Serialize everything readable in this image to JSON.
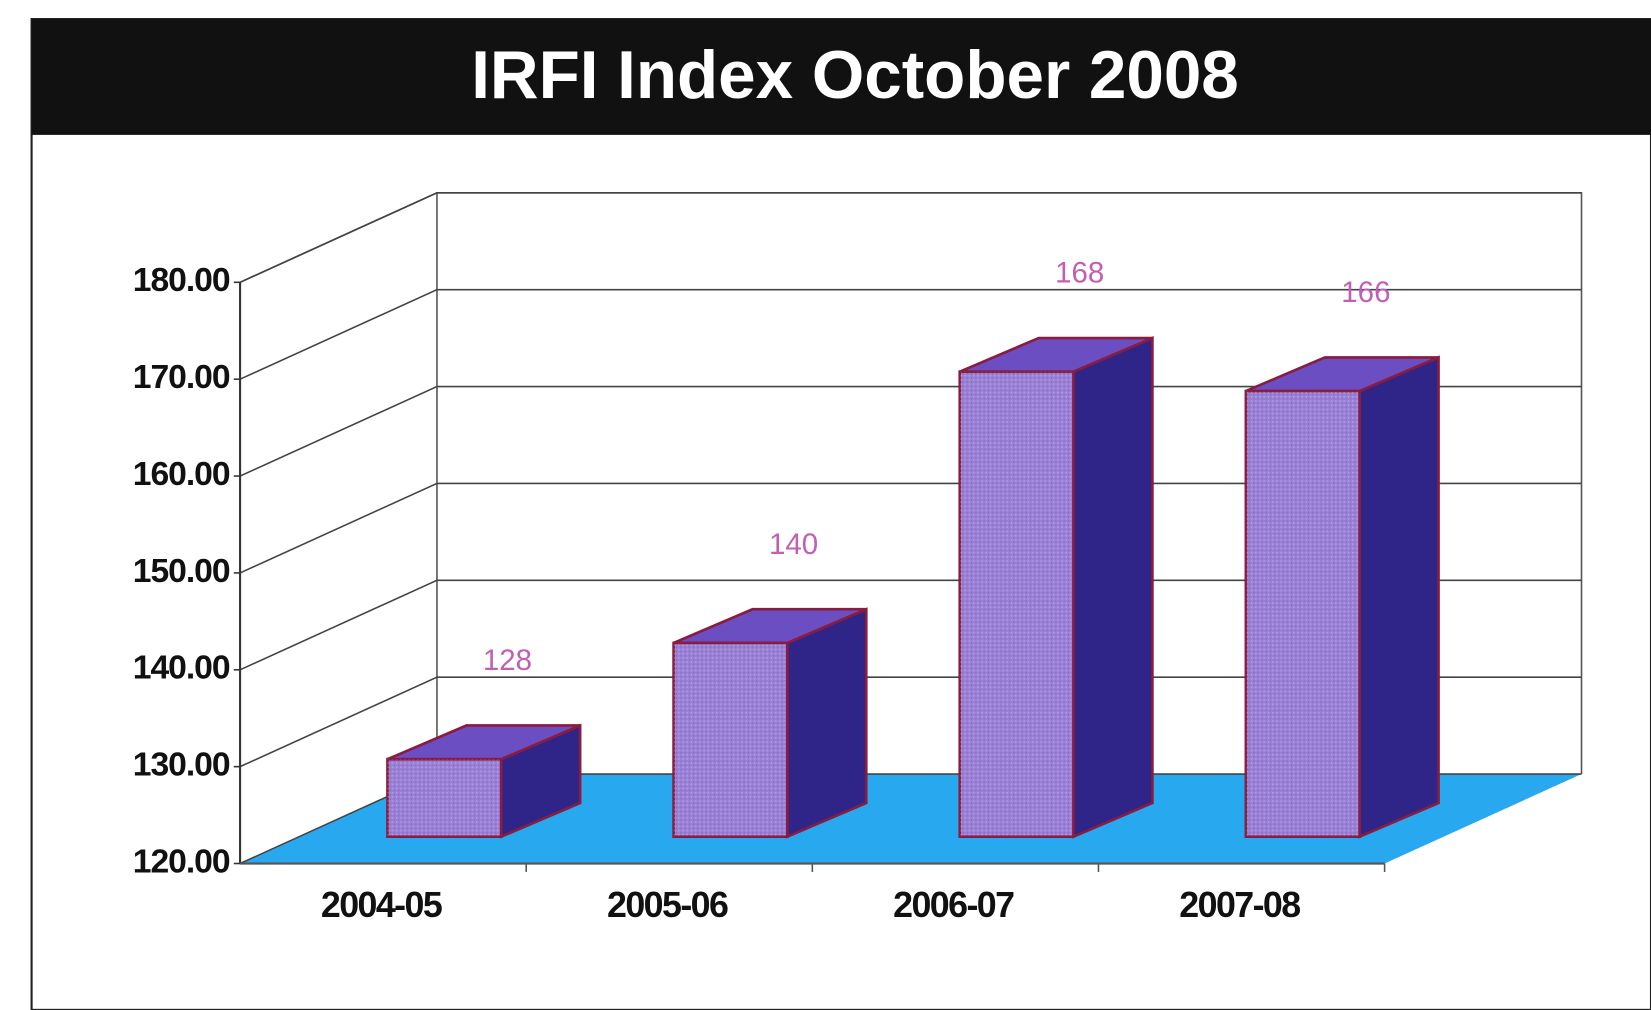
{
  "chart_data": {
    "type": "bar3d",
    "title": "IRFI Index October 2008",
    "categories": [
      "2004-05",
      "2005-06",
      "2006-07",
      "2007-08"
    ],
    "values": [
      128,
      140,
      168,
      166
    ],
    "color": "#9a80d6",
    "side_color": "#2f2588",
    "top_color": "#6b4fc2",
    "edge_color": "#8a1c40",
    "floor_color": "#28a8ee",
    "label_color": "#c25fb4",
    "ylim": [
      120,
      180
    ],
    "yticks": [
      {
        "value": 120,
        "label": "120.00"
      },
      {
        "value": 130,
        "label": "130.00"
      },
      {
        "value": 140,
        "label": "140.00"
      },
      {
        "value": 150,
        "label": "150.00"
      },
      {
        "value": 160,
        "label": "160.00"
      },
      {
        "value": 170,
        "label": "170.00"
      },
      {
        "value": 180,
        "label": "180.00"
      }
    ],
    "grid": true
  }
}
